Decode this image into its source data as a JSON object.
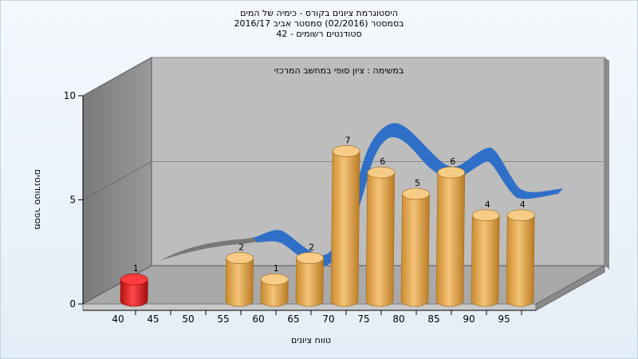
{
  "chart_data": {
    "type": "bar",
    "title": [
      "היסטוגרמת ציונים בקורס - כימיה של המים",
      "בסמסטר  (02/2016)  סמסטר אביב 2016/17",
      "סטודנטים רשומים - 42"
    ],
    "annotation": "במשימה : ציון סופי במחשב המרכזי",
    "xlabel": "טווח ציונים",
    "ylabel": "מספר סטודנטים",
    "ylim": [
      0,
      10
    ],
    "yticks": [
      "0",
      "5",
      "10"
    ],
    "xticks": [
      "40",
      "45",
      "50",
      "55",
      "60",
      "65",
      "70",
      "75",
      "80",
      "85",
      "90",
      "95"
    ],
    "categories": [
      "40",
      "45",
      "50",
      "55",
      "60",
      "65",
      "70",
      "75",
      "80",
      "85",
      "90",
      "95"
    ],
    "values": [
      1,
      0,
      0,
      2,
      1,
      2,
      7,
      6,
      5,
      6,
      4,
      4
    ],
    "value_labels": [
      "1",
      "",
      "",
      "2",
      "1",
      "2",
      "7",
      "6",
      "5",
      "6",
      "4",
      "4"
    ],
    "highlight_color": "#e01a1a",
    "bar_color": "#e8a94a",
    "curve_color": "#2f6fc8",
    "curve_shadow_color": "#777777",
    "wall_color": "#bdbdbd",
    "floor_color": "#a9a9a9",
    "side_wall_color": "#8c8c8c",
    "background_color": "#e9f2fb",
    "grid": true,
    "legend": "none"
  }
}
